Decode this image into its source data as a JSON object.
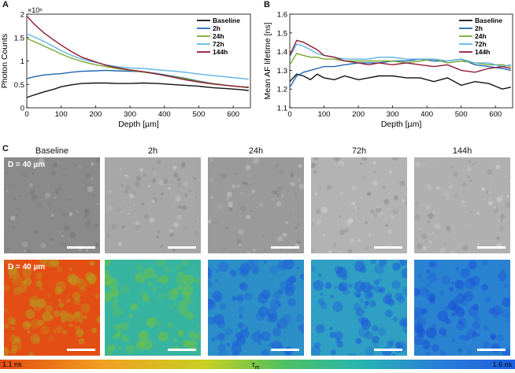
{
  "panels": {
    "a": "A",
    "b": "B",
    "c": "C"
  },
  "chart_data": [
    {
      "type": "line",
      "panel": "A",
      "title": "",
      "xlabel": "Depth [µm]",
      "ylabel": "Photon Counts",
      "multiplier": "×10⁶",
      "xlim": [
        0,
        650
      ],
      "ylim": [
        0,
        2
      ],
      "xticks": [
        "0",
        "100",
        "200",
        "300",
        "400",
        "500",
        "600"
      ],
      "yticks": [
        "0",
        "0.5",
        "1",
        "1.5",
        "2"
      ],
      "legend_position": "top-right",
      "series": [
        {
          "name": "Baseline",
          "color": "#111111",
          "x": [
            0,
            20,
            50,
            80,
            100,
            130,
            160,
            200,
            230,
            260,
            300,
            340,
            380,
            420,
            460,
            500,
            540,
            580,
            620,
            645
          ],
          "y": [
            0.22,
            0.27,
            0.34,
            0.4,
            0.45,
            0.49,
            0.52,
            0.53,
            0.53,
            0.52,
            0.52,
            0.53,
            0.52,
            0.5,
            0.48,
            0.46,
            0.43,
            0.41,
            0.39,
            0.37
          ]
        },
        {
          "name": "2h",
          "color": "#1f67b0",
          "x": [
            0,
            20,
            50,
            80,
            100,
            130,
            160,
            200,
            230,
            260,
            300,
            340,
            380,
            420,
            460,
            500,
            540,
            580,
            620,
            645
          ],
          "y": [
            0.62,
            0.66,
            0.7,
            0.72,
            0.73,
            0.76,
            0.78,
            0.79,
            0.8,
            0.79,
            0.78,
            0.77,
            0.73,
            0.68,
            0.63,
            0.57,
            0.52,
            0.48,
            0.45,
            0.43
          ]
        },
        {
          "name": "24h",
          "color": "#77a832",
          "x": [
            0,
            20,
            50,
            80,
            100,
            130,
            160,
            200,
            230,
            260,
            300,
            340,
            380,
            420,
            460,
            500,
            540,
            580,
            620,
            645
          ],
          "y": [
            1.48,
            1.42,
            1.32,
            1.22,
            1.15,
            1.06,
            0.99,
            0.92,
            0.88,
            0.84,
            0.8,
            0.76,
            0.72,
            0.67,
            0.62,
            0.56,
            0.52,
            0.48,
            0.45,
            0.43
          ]
        },
        {
          "name": "72h",
          "color": "#5fb4e6",
          "x": [
            0,
            20,
            50,
            80,
            100,
            130,
            160,
            200,
            230,
            260,
            300,
            340,
            380,
            420,
            460,
            500,
            540,
            580,
            620,
            645
          ],
          "y": [
            1.58,
            1.52,
            1.42,
            1.3,
            1.22,
            1.12,
            1.04,
            0.97,
            0.92,
            0.88,
            0.85,
            0.84,
            0.81,
            0.79,
            0.76,
            0.72,
            0.69,
            0.66,
            0.63,
            0.61
          ]
        },
        {
          "name": "144h",
          "color": "#8e1a33",
          "x": [
            0,
            20,
            50,
            80,
            100,
            130,
            160,
            200,
            230,
            260,
            300,
            340,
            380,
            420,
            460,
            500,
            540,
            580,
            620,
            645
          ],
          "y": [
            1.96,
            1.8,
            1.6,
            1.44,
            1.34,
            1.2,
            1.08,
            0.98,
            0.91,
            0.86,
            0.81,
            0.77,
            0.72,
            0.66,
            0.6,
            0.55,
            0.51,
            0.48,
            0.45,
            0.44
          ]
        }
      ]
    },
    {
      "type": "line",
      "panel": "B",
      "title": "",
      "xlabel": "Depth [µm]",
      "ylabel": "Mean AF lifetime [ns]",
      "xlim": [
        0,
        650
      ],
      "ylim": [
        1.1,
        1.6
      ],
      "xticks": [
        "0",
        "100",
        "200",
        "300",
        "400",
        "500",
        "600"
      ],
      "yticks": [
        "1.1",
        "1.2",
        "1.3",
        "1.4",
        "1.5",
        "1.6"
      ],
      "legend_position": "top-right",
      "series": [
        {
          "name": "Baseline",
          "color": "#111111",
          "x": [
            0,
            20,
            40,
            60,
            80,
            100,
            130,
            160,
            200,
            230,
            260,
            300,
            340,
            380,
            420,
            460,
            500,
            540,
            580,
            620,
            645
          ],
          "y": [
            1.24,
            1.28,
            1.27,
            1.25,
            1.28,
            1.26,
            1.25,
            1.27,
            1.25,
            1.26,
            1.27,
            1.27,
            1.26,
            1.26,
            1.24,
            1.26,
            1.22,
            1.24,
            1.23,
            1.2,
            1.21
          ]
        },
        {
          "name": "2h",
          "color": "#1f67b0",
          "x": [
            0,
            20,
            40,
            60,
            80,
            100,
            130,
            160,
            200,
            230,
            260,
            300,
            340,
            380,
            420,
            460,
            500,
            540,
            580,
            620,
            645
          ],
          "y": [
            1.21,
            1.27,
            1.29,
            1.3,
            1.31,
            1.32,
            1.32,
            1.33,
            1.34,
            1.34,
            1.34,
            1.35,
            1.35,
            1.36,
            1.35,
            1.35,
            1.36,
            1.33,
            1.32,
            1.31,
            1.3
          ]
        },
        {
          "name": "24h",
          "color": "#77a832",
          "x": [
            0,
            20,
            40,
            60,
            80,
            100,
            130,
            160,
            200,
            230,
            260,
            300,
            340,
            380,
            420,
            460,
            500,
            540,
            580,
            620,
            645
          ],
          "y": [
            1.33,
            1.39,
            1.38,
            1.37,
            1.37,
            1.36,
            1.36,
            1.35,
            1.35,
            1.35,
            1.35,
            1.35,
            1.34,
            1.35,
            1.36,
            1.34,
            1.35,
            1.34,
            1.33,
            1.33,
            1.32
          ]
        },
        {
          "name": "72h",
          "color": "#5fb4e6",
          "x": [
            0,
            20,
            40,
            60,
            80,
            100,
            130,
            160,
            200,
            230,
            260,
            300,
            340,
            380,
            420,
            460,
            500,
            540,
            580,
            620,
            645
          ],
          "y": [
            1.37,
            1.44,
            1.43,
            1.41,
            1.39,
            1.38,
            1.37,
            1.36,
            1.36,
            1.36,
            1.37,
            1.37,
            1.36,
            1.36,
            1.36,
            1.35,
            1.36,
            1.34,
            1.34,
            1.32,
            1.33
          ]
        },
        {
          "name": "144h",
          "color": "#8e1a33",
          "x": [
            0,
            20,
            40,
            60,
            80,
            100,
            130,
            160,
            200,
            230,
            260,
            300,
            340,
            380,
            420,
            460,
            500,
            540,
            580,
            620,
            645
          ],
          "y": [
            1.38,
            1.46,
            1.45,
            1.43,
            1.41,
            1.38,
            1.37,
            1.35,
            1.34,
            1.33,
            1.34,
            1.33,
            1.34,
            1.33,
            1.32,
            1.33,
            1.3,
            1.29,
            1.31,
            1.32,
            1.31
          ]
        }
      ]
    }
  ],
  "panel_c": {
    "columns": [
      "Baseline",
      "2h",
      "24h",
      "72h",
      "144h"
    ],
    "depth_label": "D = 40 µm",
    "intensity_tiles": [
      {
        "name": "Baseline",
        "bg": "#8a8a8a"
      },
      {
        "name": "2h",
        "bg": "#a7a7a7"
      },
      {
        "name": "24h",
        "bg": "#9a9a9a"
      },
      {
        "name": "72h",
        "bg": "#b3b3b3"
      },
      {
        "name": "144h",
        "bg": "#b0b0b0"
      }
    ],
    "lifetime_tiles": [
      {
        "name": "Baseline",
        "bg": "#e34e14",
        "spot": "#b99a1e"
      },
      {
        "name": "2h",
        "bg": "#36b4a0",
        "spot": "#6ec048"
      },
      {
        "name": "24h",
        "bg": "#2c8fc8",
        "spot": "#1f5fd8"
      },
      {
        "name": "72h",
        "bg": "#2f9fc4",
        "spot": "#1f5fd8"
      },
      {
        "name": "144h",
        "bg": "#2a83d0",
        "spot": "#1c55d8"
      }
    ],
    "colorbar": {
      "min_label": "1.1 ns",
      "max_label": "1.6 ns",
      "symbol": "τ",
      "subscript": "m"
    }
  }
}
